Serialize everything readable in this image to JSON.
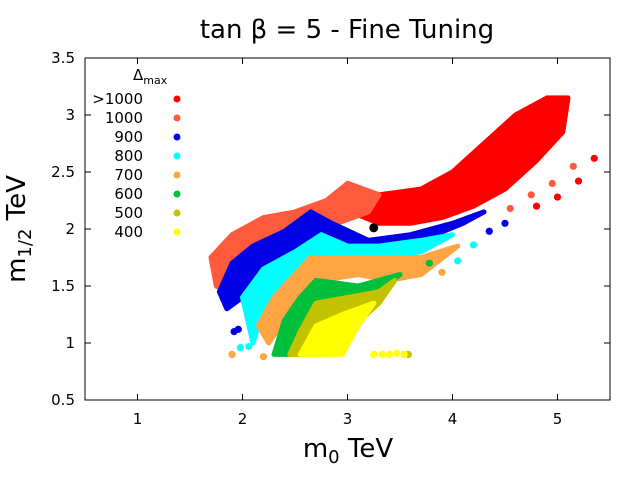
{
  "chart_data": {
    "type": "scatter",
    "title": "tan β = 5 - Fine Tuning",
    "xlabel": {
      "main": "m",
      "sub": "0",
      "unit": " TeV"
    },
    "ylabel": {
      "main": "m",
      "sub": "1/2",
      "unit": " TeV"
    },
    "xlim": [
      0.5,
      5.5
    ],
    "ylim": [
      0.5,
      3.5
    ],
    "xticks": [
      "1",
      "2",
      "3",
      "4",
      "5"
    ],
    "xtick_values": [
      1,
      2,
      3,
      4,
      5
    ],
    "yticks": [
      "0.5",
      "1",
      "1.5",
      "2",
      "2.5",
      "3",
      "3.5"
    ],
    "ytick_values": [
      0.5,
      1,
      1.5,
      2,
      2.5,
      3,
      3.5
    ],
    "legend": {
      "title": {
        "main": "Δ",
        "sub": "max"
      },
      "position": "top-left",
      "entries": [
        {
          "label": ">1000",
          "color": "#ff0000"
        },
        {
          "label": "1000",
          "color": "#ff5a3c"
        },
        {
          "label": "900",
          "color": "#0000e6"
        },
        {
          "label": "800",
          "color": "#00ffff"
        },
        {
          "label": "700",
          "color": "#ffa544"
        },
        {
          "label": "600",
          "color": "#00bf3a"
        },
        {
          "label": "500",
          "color": "#c2c200"
        },
        {
          "label": "400",
          "color": "#ffff00"
        }
      ]
    },
    "highlight_point": {
      "x": 3.25,
      "y": 2.01,
      "color": "#000000"
    },
    "series": [
      {
        "name": ">1000",
        "color": "#ff0000",
        "region": [
          [
            3.0,
            2.4
          ],
          [
            3.3,
            2.3
          ],
          [
            3.7,
            2.35
          ],
          [
            4.0,
            2.5
          ],
          [
            4.3,
            2.75
          ],
          [
            4.6,
            3.0
          ],
          [
            4.9,
            3.15
          ],
          [
            5.1,
            3.15
          ],
          [
            5.05,
            2.85
          ],
          [
            4.8,
            2.6
          ],
          [
            4.5,
            2.35
          ],
          [
            4.2,
            2.2
          ],
          [
            3.9,
            2.1
          ],
          [
            3.6,
            2.05
          ],
          [
            3.3,
            2.05
          ],
          [
            2.9,
            2.2
          ]
        ]
      },
      {
        "name": "1000",
        "color": "#ff5a3c",
        "region": [
          [
            1.7,
            1.75
          ],
          [
            1.9,
            1.95
          ],
          [
            2.2,
            2.1
          ],
          [
            2.5,
            2.15
          ],
          [
            2.8,
            2.25
          ],
          [
            3.0,
            2.4
          ],
          [
            3.3,
            2.3
          ],
          [
            3.2,
            2.15
          ],
          [
            2.9,
            2.05
          ],
          [
            2.6,
            2.0
          ],
          [
            2.3,
            1.85
          ],
          [
            2.05,
            1.65
          ],
          [
            1.85,
            1.45
          ],
          [
            1.75,
            1.5
          ]
        ]
      },
      {
        "name": "900",
        "color": "#0000e6",
        "region": [
          [
            1.78,
            1.45
          ],
          [
            1.9,
            1.7
          ],
          [
            2.1,
            1.85
          ],
          [
            2.4,
            1.98
          ],
          [
            2.65,
            2.15
          ],
          [
            2.85,
            2.05
          ],
          [
            3.2,
            1.9
          ],
          [
            3.6,
            1.95
          ],
          [
            4.0,
            2.05
          ],
          [
            4.3,
            2.15
          ],
          [
            4.1,
            2.05
          ],
          [
            3.7,
            1.9
          ],
          [
            3.3,
            1.85
          ],
          [
            3.0,
            1.85
          ],
          [
            2.75,
            1.95
          ],
          [
            2.5,
            1.8
          ],
          [
            2.2,
            1.65
          ],
          [
            2.0,
            1.4
          ],
          [
            1.85,
            1.3
          ]
        ]
      },
      {
        "name": "800",
        "color": "#00ffff",
        "region": [
          [
            2.0,
            1.4
          ],
          [
            2.2,
            1.65
          ],
          [
            2.5,
            1.8
          ],
          [
            2.75,
            1.95
          ],
          [
            3.0,
            1.85
          ],
          [
            3.3,
            1.85
          ],
          [
            3.7,
            1.9
          ],
          [
            4.0,
            1.95
          ],
          [
            3.7,
            1.8
          ],
          [
            3.3,
            1.75
          ],
          [
            2.9,
            1.75
          ],
          [
            2.65,
            1.75
          ],
          [
            2.5,
            1.6
          ],
          [
            2.3,
            1.4
          ],
          [
            2.15,
            1.15
          ],
          [
            2.1,
            1.0
          ]
        ]
      },
      {
        "name": "700",
        "color": "#ffa544",
        "region": [
          [
            2.15,
            1.15
          ],
          [
            2.3,
            1.4
          ],
          [
            2.5,
            1.6
          ],
          [
            2.65,
            1.75
          ],
          [
            2.9,
            1.75
          ],
          [
            3.3,
            1.75
          ],
          [
            3.7,
            1.75
          ],
          [
            4.05,
            1.85
          ],
          [
            3.7,
            1.6
          ],
          [
            3.4,
            1.55
          ],
          [
            3.1,
            1.6
          ],
          [
            2.75,
            1.55
          ],
          [
            2.55,
            1.4
          ],
          [
            2.4,
            1.2
          ],
          [
            2.25,
            1.0
          ]
        ]
      },
      {
        "name": "600",
        "color": "#00bf3a",
        "region": [
          [
            2.3,
            0.9
          ],
          [
            2.4,
            1.2
          ],
          [
            2.55,
            1.4
          ],
          [
            2.7,
            1.55
          ],
          [
            3.1,
            1.5
          ],
          [
            3.5,
            1.6
          ],
          [
            3.3,
            1.45
          ],
          [
            3.0,
            1.4
          ],
          [
            2.7,
            1.35
          ],
          [
            2.55,
            1.1
          ],
          [
            2.45,
            0.9
          ]
        ]
      },
      {
        "name": "500",
        "color": "#c2c200",
        "region": [
          [
            2.45,
            0.9
          ],
          [
            2.55,
            1.1
          ],
          [
            2.7,
            1.35
          ],
          [
            3.0,
            1.4
          ],
          [
            3.3,
            1.45
          ],
          [
            3.45,
            1.55
          ],
          [
            3.3,
            1.35
          ],
          [
            3.0,
            1.1
          ],
          [
            2.8,
            0.9
          ]
        ]
      },
      {
        "name": "400",
        "color": "#ffff00",
        "region": [
          [
            2.55,
            0.9
          ],
          [
            2.7,
            1.15
          ],
          [
            2.95,
            1.25
          ],
          [
            3.25,
            1.35
          ],
          [
            3.1,
            1.15
          ],
          [
            2.95,
            0.9
          ]
        ]
      }
    ],
    "extra_points": [
      {
        "series": ">1000",
        "x": 5.35,
        "y": 2.62
      },
      {
        "series": ">1000",
        "x": 5.2,
        "y": 2.42
      },
      {
        "series": ">1000",
        "x": 5.0,
        "y": 2.28
      },
      {
        "series": ">1000",
        "x": 4.8,
        "y": 2.2
      },
      {
        "series": "1000",
        "x": 5.15,
        "y": 2.55
      },
      {
        "series": "1000",
        "x": 4.95,
        "y": 2.4
      },
      {
        "series": "1000",
        "x": 4.75,
        "y": 2.3
      },
      {
        "series": "1000",
        "x": 4.55,
        "y": 2.18
      },
      {
        "series": "900",
        "x": 4.5,
        "y": 2.05
      },
      {
        "series": "900",
        "x": 4.35,
        "y": 1.98
      },
      {
        "series": "900",
        "x": 1.92,
        "y": 1.1
      },
      {
        "series": "900",
        "x": 1.96,
        "y": 1.12
      },
      {
        "series": "800",
        "x": 4.2,
        "y": 1.86
      },
      {
        "series": "800",
        "x": 4.05,
        "y": 1.72
      },
      {
        "series": "800",
        "x": 1.98,
        "y": 0.96
      },
      {
        "series": "800",
        "x": 2.06,
        "y": 0.97
      },
      {
        "series": "700",
        "x": 3.9,
        "y": 1.62
      },
      {
        "series": "700",
        "x": 1.9,
        "y": 0.9
      },
      {
        "series": "700",
        "x": 2.2,
        "y": 0.88
      },
      {
        "series": "600",
        "x": 3.78,
        "y": 1.7
      },
      {
        "series": "500",
        "x": 3.58,
        "y": 0.9
      },
      {
        "series": "400",
        "x": 3.25,
        "y": 0.9
      },
      {
        "series": "400",
        "x": 3.33,
        "y": 0.9
      },
      {
        "series": "400",
        "x": 3.4,
        "y": 0.9
      },
      {
        "series": "400",
        "x": 3.47,
        "y": 0.91
      },
      {
        "series": "400",
        "x": 3.54,
        "y": 0.9
      }
    ]
  }
}
